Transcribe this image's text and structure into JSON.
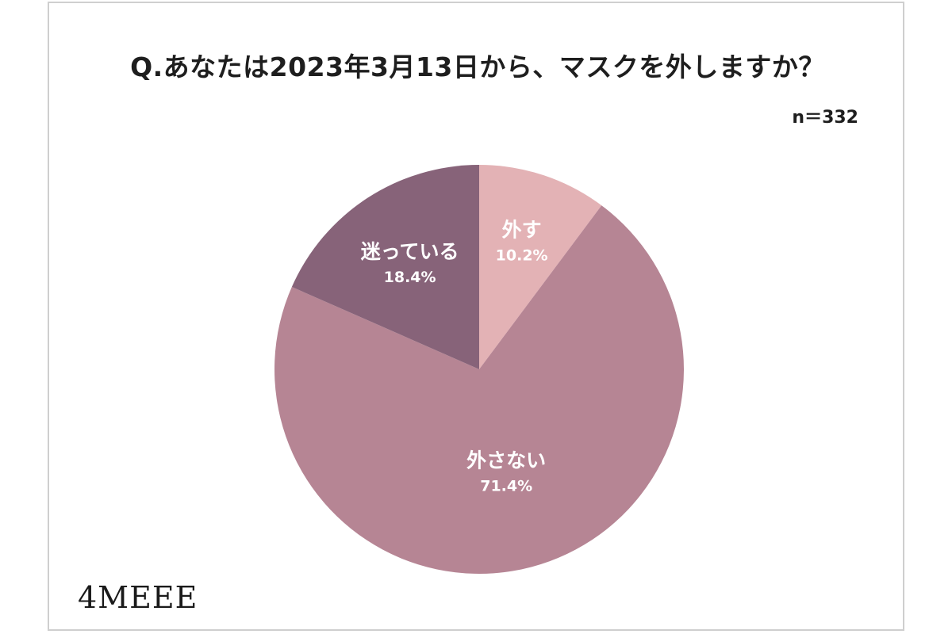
{
  "brand": {
    "logo": "4MEEE"
  },
  "chart_data": {
    "type": "pie",
    "title": "Q.あなたは2023年3月13日から、マスクを外しますか？",
    "sample_size_label": "n＝332",
    "slices": [
      {
        "label": "外す",
        "value": 10.2,
        "value_label": "10.2%",
        "color": "#e3b2b5"
      },
      {
        "label": "外さない",
        "value": 71.4,
        "value_label": "71.4%",
        "color": "#b68594"
      },
      {
        "label": "迷っている",
        "value": 18.4,
        "value_label": "18.4%",
        "color": "#876379"
      }
    ],
    "start": "12 o'clock",
    "direction": "clockwise",
    "legend": "none (labels inside slices)"
  }
}
